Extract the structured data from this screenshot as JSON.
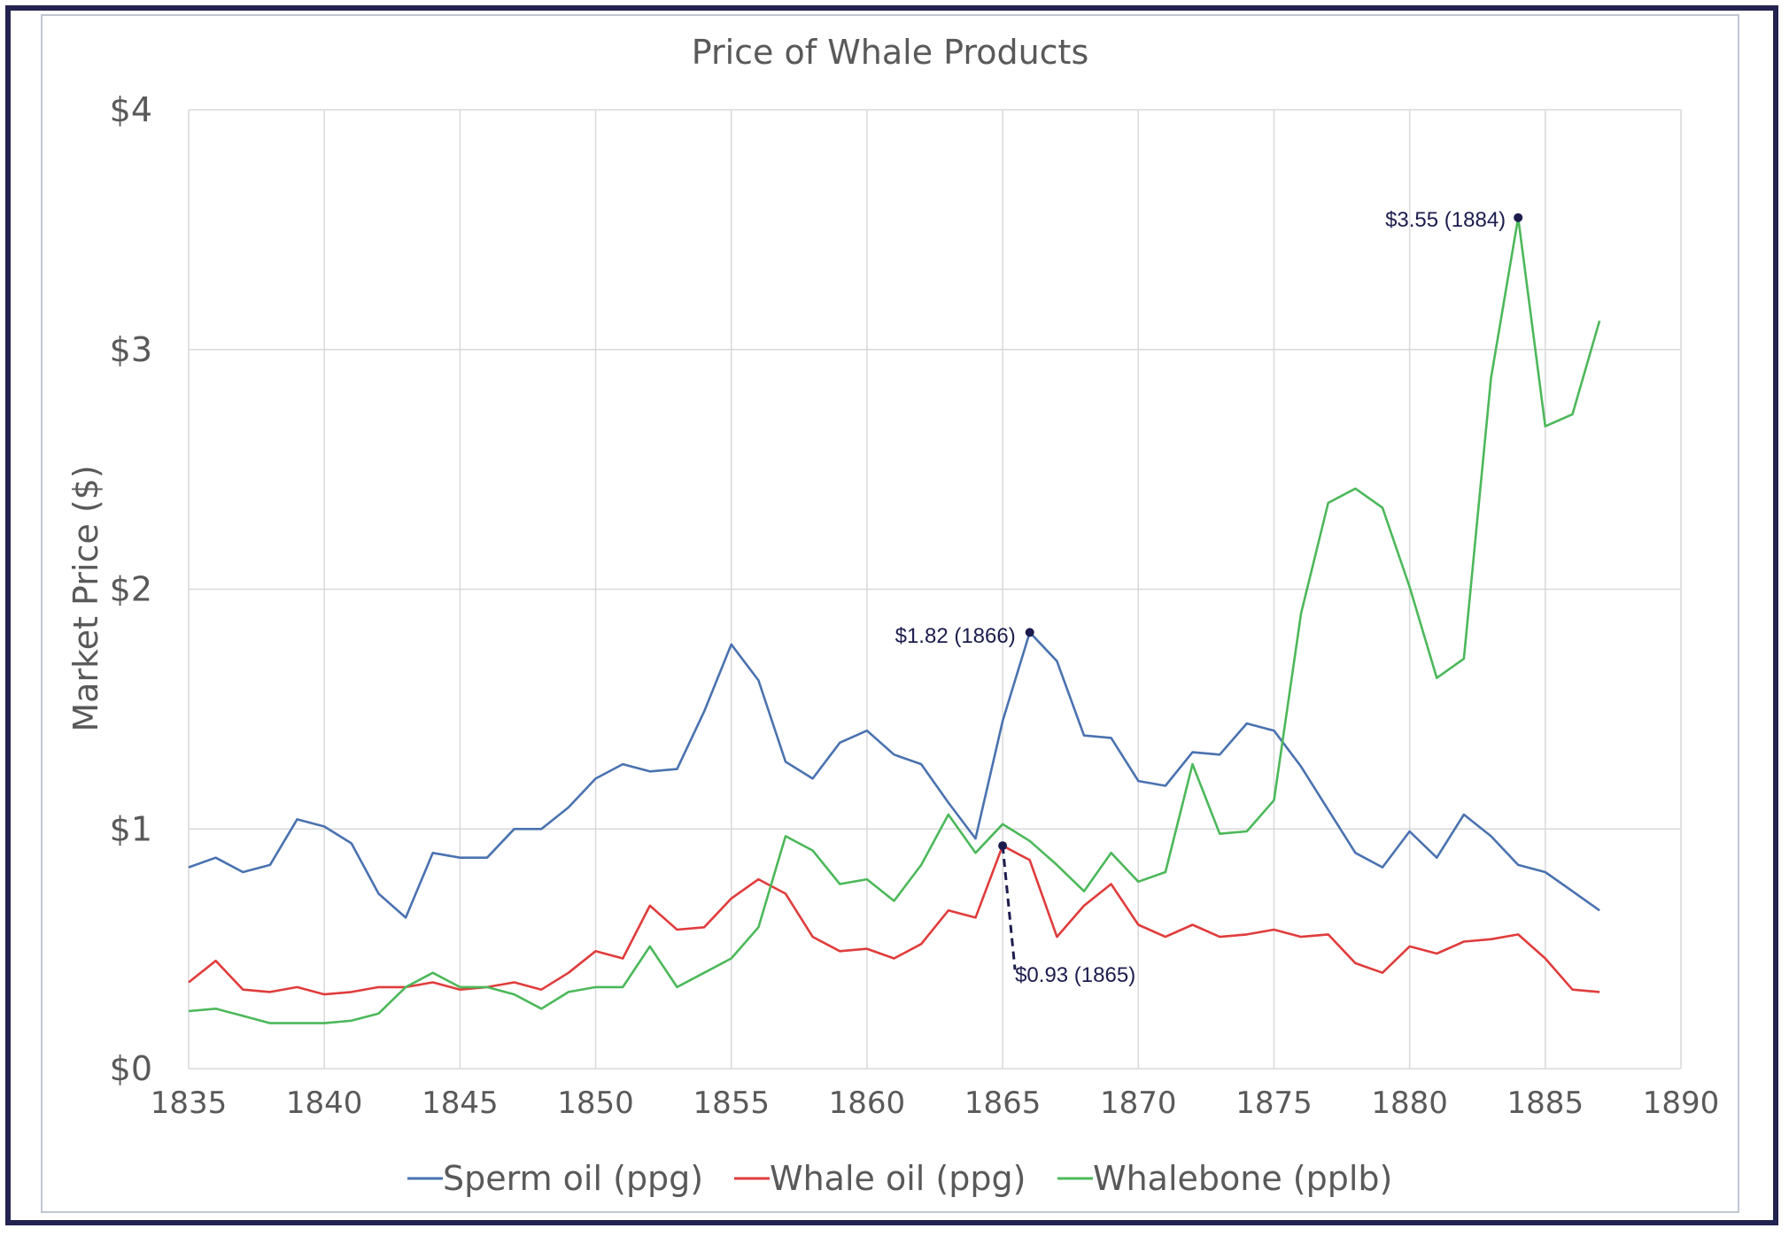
{
  "chart_data": {
    "type": "line",
    "title": "Price of Whale Products",
    "xlabel": "",
    "ylabel": "Market Price ($)",
    "xlim": [
      1835,
      1890
    ],
    "ylim": [
      0,
      4
    ],
    "x_ticks": [
      "1835",
      "1840",
      "1845",
      "1850",
      "1855",
      "1860",
      "1865",
      "1870",
      "1875",
      "1880",
      "1885",
      "1890"
    ],
    "y_ticks": [
      "$0",
      "$1",
      "$2",
      "$3",
      "$4"
    ],
    "grid": true,
    "legend_position": "bottom",
    "x": [
      1835,
      1836,
      1837,
      1838,
      1839,
      1840,
      1841,
      1842,
      1843,
      1844,
      1845,
      1846,
      1847,
      1848,
      1849,
      1850,
      1851,
      1852,
      1853,
      1854,
      1855,
      1856,
      1857,
      1858,
      1859,
      1860,
      1861,
      1862,
      1863,
      1864,
      1865,
      1866,
      1867,
      1868,
      1869,
      1870,
      1871,
      1872,
      1873,
      1874,
      1875,
      1876,
      1877,
      1878,
      1879,
      1880,
      1881,
      1882,
      1883,
      1884,
      1885,
      1886,
      1887
    ],
    "series": [
      {
        "name": "Sperm oil (ppg)",
        "color": "#4a72b0",
        "values": [
          0.84,
          0.88,
          0.82,
          0.85,
          1.04,
          1.01,
          0.94,
          0.73,
          0.63,
          0.9,
          0.88,
          0.88,
          1.0,
          1.0,
          1.09,
          1.21,
          1.27,
          1.24,
          1.25,
          1.49,
          1.77,
          1.62,
          1.28,
          1.21,
          1.36,
          1.41,
          1.31,
          1.27,
          1.11,
          0.96,
          1.45,
          1.82,
          1.7,
          1.39,
          1.38,
          1.2,
          1.18,
          1.32,
          1.31,
          1.44,
          1.41,
          1.26,
          1.08,
          0.9,
          0.84,
          0.99,
          0.88,
          1.06,
          0.97,
          0.85,
          0.82,
          0.74,
          0.66
        ]
      },
      {
        "name": "Whale oil (ppg)",
        "color": "#e03c3c",
        "values": [
          0.36,
          0.45,
          0.33,
          0.32,
          0.34,
          0.31,
          0.32,
          0.34,
          0.34,
          0.36,
          0.33,
          0.34,
          0.36,
          0.33,
          0.4,
          0.49,
          0.46,
          0.68,
          0.58,
          0.59,
          0.71,
          0.79,
          0.73,
          0.55,
          0.49,
          0.5,
          0.46,
          0.52,
          0.66,
          0.63,
          0.93,
          0.87,
          0.55,
          0.68,
          0.77,
          0.6,
          0.55,
          0.6,
          0.55,
          0.56,
          0.58,
          0.55,
          0.56,
          0.44,
          0.4,
          0.51,
          0.48,
          0.53,
          0.54,
          0.56,
          0.46,
          0.33,
          0.32
        ]
      },
      {
        "name": "Whalebone (pplb)",
        "color": "#4cb85a",
        "values": [
          0.24,
          0.25,
          0.22,
          0.19,
          0.19,
          0.19,
          0.2,
          0.23,
          0.34,
          0.4,
          0.34,
          0.34,
          0.31,
          0.25,
          0.32,
          0.34,
          0.34,
          0.51,
          0.34,
          0.4,
          0.46,
          0.59,
          0.97,
          0.91,
          0.77,
          0.79,
          0.7,
          0.85,
          1.06,
          0.9,
          1.02,
          0.95,
          0.85,
          0.74,
          0.9,
          0.78,
          0.82,
          1.27,
          0.98,
          0.99,
          1.12,
          1.9,
          2.36,
          2.42,
          2.34,
          2.01,
          1.63,
          1.71,
          2.88,
          3.55,
          2.68,
          2.73,
          3.12
        ]
      }
    ],
    "annotations": [
      {
        "text": "$3.55 (1884)",
        "x": 1884,
        "y": 3.55
      },
      {
        "text": "$1.82 (1866)",
        "x": 1866,
        "y": 1.82
      },
      {
        "text": "$0.93 (1865)",
        "x": 1865,
        "y": 0.93
      }
    ]
  }
}
